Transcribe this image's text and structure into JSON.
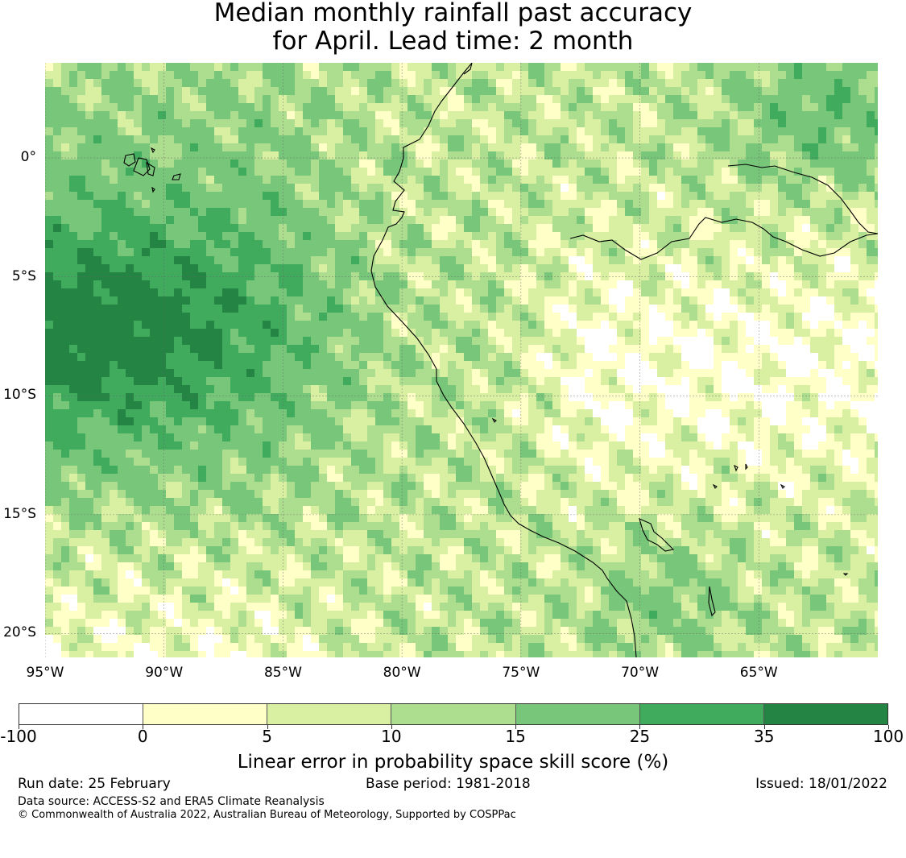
{
  "title": {
    "line1": "Median monthly rainfall past accuracy",
    "line2": "for April. Lead time: 2 month"
  },
  "map": {
    "extent": {
      "lon": [
        -95,
        -60
      ],
      "lat": [
        -21,
        4
      ]
    },
    "lat_labels": [
      "0°",
      "5°S",
      "10°S",
      "15°S",
      "20°S"
    ],
    "lat_values": [
      0,
      -5,
      -10,
      -15,
      -20
    ],
    "lon_labels": [
      "95°W",
      "90°W",
      "85°W",
      "80°W",
      "75°W",
      "70°W",
      "65°W"
    ],
    "lon_values": [
      -95,
      -90,
      -85,
      -80,
      -75,
      -70,
      -65
    ],
    "colors": [
      "#ffffff",
      "#ffffc8",
      "#d9f0a3",
      "#addd8e",
      "#78c679",
      "#41ab5d",
      "#238443"
    ]
  },
  "colorbar": {
    "ticks": [
      "-100",
      "0",
      "5",
      "10",
      "15",
      "25",
      "35",
      "100"
    ],
    "colors": [
      "#ffffff",
      "#ffffc8",
      "#d9f0a3",
      "#addd8e",
      "#78c679",
      "#41ab5d",
      "#238443"
    ],
    "label": "Linear error in probability space skill score (%)"
  },
  "footer": {
    "run_date": "Run date: 25 February",
    "base_period": "Base period: 1981-2018",
    "issued": "Issued: 18/01/2022",
    "data_source": "Data source: ACCESS-S2 and ERA5 Climate Reanalysis",
    "copyright": "© Commonwealth of Australia 2022, Australian Bureau of Meteorology, Supported by COSPPac"
  }
}
